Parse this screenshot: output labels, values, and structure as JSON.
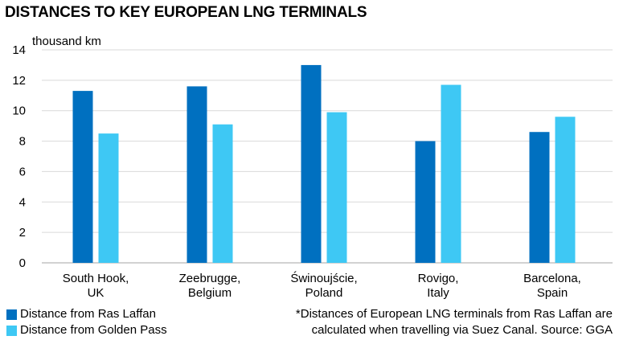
{
  "chart_data": {
    "type": "bar",
    "title": "DISTANCES TO KEY EUROPEAN LNG TERMINALS",
    "ylabel": "thousand km",
    "ylim": [
      0,
      14
    ],
    "yticks": [
      0,
      2,
      4,
      6,
      8,
      10,
      12,
      14
    ],
    "grid": true,
    "legend_position": "bottom-left",
    "categories": [
      [
        "South Hook,",
        "UK"
      ],
      [
        "Zeebrugge,",
        "Belgium"
      ],
      [
        "Świnoujście,",
        "Poland"
      ],
      [
        "Rovigo,",
        "Italy"
      ],
      [
        "Barcelona,",
        "Spain"
      ]
    ],
    "series": [
      {
        "name": "Distance from Ras Laffan",
        "color": "#0070c0",
        "values": [
          11.3,
          11.6,
          13.0,
          8.0,
          8.6
        ]
      },
      {
        "name": "Distance from Golden Pass",
        "color": "#3ec8f4",
        "values": [
          8.5,
          9.1,
          9.9,
          11.7,
          9.6
        ]
      }
    ],
    "note": [
      "*Distances of European LNG terminals from Ras Laffan are",
      "calculated when travelling via Suez Canal. Source: GGA"
    ]
  }
}
